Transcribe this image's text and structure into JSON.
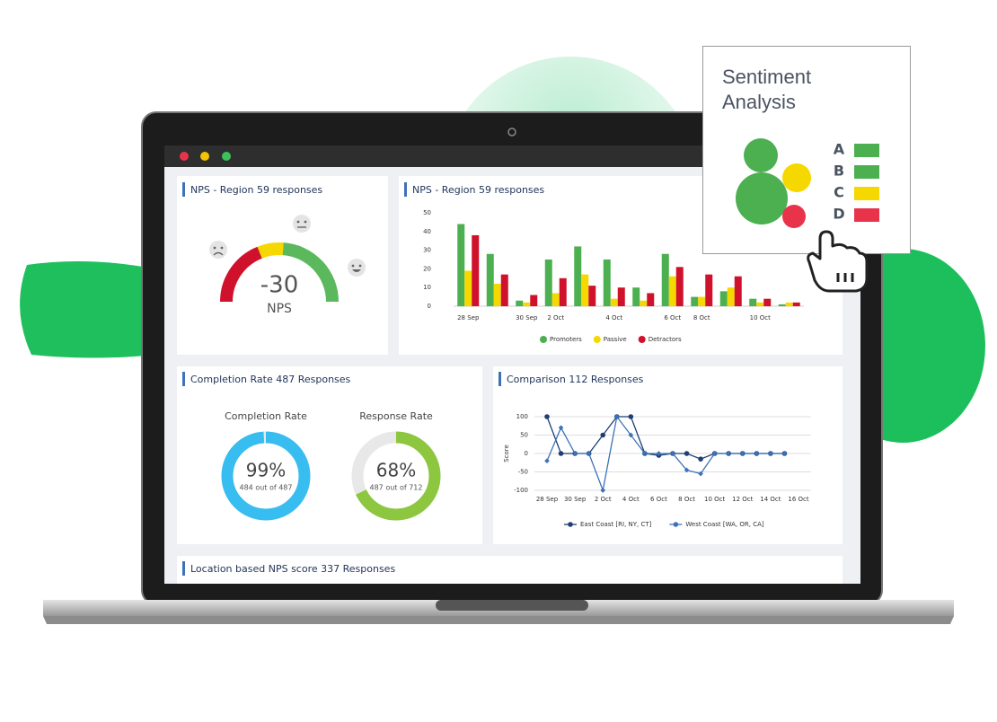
{
  "window": {
    "panels": [
      "NPS - Region 59 responses",
      "NPS - Region 59 responses",
      "Completion Rate 487 Responses",
      "Comparison 112 Responses",
      "Location based NPS score 337 Responses"
    ]
  },
  "chart_data": [
    {
      "type": "gauge",
      "value": -30,
      "label": "NPS",
      "colors": [
        "#d0112b",
        "#f5d800",
        "#5cb85c"
      ]
    },
    {
      "type": "bar",
      "categories": [
        "28 Sep",
        null,
        "30 Sep",
        "2 Oct",
        null,
        "4 Oct",
        null,
        "6 Oct",
        "8 Oct",
        null,
        "10 Oct",
        null
      ],
      "series": [
        {
          "name": "Promoters",
          "color": "#4caf50",
          "values": [
            44,
            28,
            3,
            25,
            32,
            25,
            10,
            28,
            5,
            8,
            4,
            1
          ]
        },
        {
          "name": "Passive",
          "color": "#f5d800",
          "values": [
            19,
            12,
            2,
            7,
            17,
            4,
            3,
            16,
            5,
            10,
            2,
            2
          ]
        },
        {
          "name": "Detractors",
          "color": "#d0112b",
          "values": [
            38,
            17,
            6,
            15,
            11,
            10,
            7,
            21,
            17,
            16,
            4,
            2
          ]
        }
      ],
      "ylim": [
        0,
        50
      ],
      "yticks": [
        0,
        10,
        20,
        30,
        40,
        50
      ],
      "grid": false,
      "legend": "bottom"
    },
    {
      "type": "donut",
      "title": "Completion Rate",
      "values": [
        99
      ],
      "value_labels": [
        "99%"
      ],
      "subtitle": "484 out of 487",
      "color": "#38bdf0"
    },
    {
      "type": "donut",
      "title": "Response Rate",
      "values": [
        68
      ],
      "value_labels": [
        "68%"
      ],
      "subtitle": "487 out of 712",
      "color": "#8dc63f"
    },
    {
      "type": "line",
      "y_label": "Score",
      "categories": [
        "28 Sep",
        null,
        "30 Sep",
        null,
        "2 Oct",
        null,
        "4 Oct",
        null,
        "6 Oct",
        null,
        "8 Oct",
        null,
        "10 Oct",
        null,
        "12 Oct",
        null,
        "14 Oct",
        null,
        "16 Oct"
      ],
      "series": [
        {
          "name": "East Coast [RI, NY, CT]",
          "color": "#1f3f73",
          "marker": "circle",
          "values": [
            100,
            0,
            0,
            0,
            50,
            100,
            100,
            0,
            -5,
            0,
            0,
            -15,
            0,
            0,
            0,
            0,
            0,
            0,
            null
          ]
        },
        {
          "name": "West Coast [WA, OR, CA]",
          "color": "#3d72b8",
          "marker": "diamond",
          "values": [
            -20,
            70,
            0,
            0,
            -100,
            100,
            50,
            0,
            0,
            0,
            -45,
            -55,
            0,
            0,
            0,
            0,
            0,
            0,
            null
          ]
        }
      ],
      "ylim": [
        -100,
        100
      ],
      "yticks": [
        -100,
        -50,
        0,
        50,
        100
      ],
      "grid": true,
      "legend": "bottom"
    }
  ],
  "sentiment": {
    "title": "Sentiment Analysis",
    "grades": [
      "A",
      "B",
      "C",
      "D"
    ],
    "colors": [
      "#4caf50",
      "#4caf50",
      "#f5d800",
      "#e8334a"
    ]
  }
}
